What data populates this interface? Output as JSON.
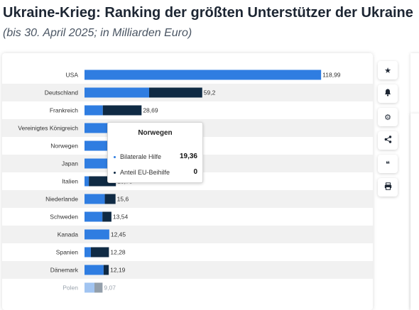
{
  "header": {
    "title": "Ukraine-Krieg: Ranking der größten Unterstützer der Ukraine",
    "subtitle": "(bis 30. April 2025; in Milliarden Euro)"
  },
  "colors": {
    "bilateral": "#2f7de1",
    "eu_share": "#0f2a44",
    "row_stripe": "#f1f1f1"
  },
  "chart_data": {
    "type": "bar",
    "orientation": "horizontal",
    "stacked": true,
    "categories": [
      "USA",
      "Deutschland",
      "Frankreich",
      "Vereinigtes Königreich",
      "Norwegen",
      "Japan",
      "Italien",
      "Niederlande",
      "Schweden",
      "Kanada",
      "Spanien",
      "Dänemark",
      "Polen"
    ],
    "series": [
      {
        "name": "Bilaterale Hilfe",
        "values": [
          118.99,
          32.5,
          9.2,
          21.8,
          19.36,
          18.4,
          2.2,
          10.2,
          9.0,
          12.45,
          3.2,
          9.6,
          5.0
        ]
      },
      {
        "name": "Anteil EU-Beihilfe",
        "values": [
          0,
          26.7,
          19.49,
          0,
          0,
          0,
          13.58,
          5.4,
          4.54,
          0,
          9.08,
          2.59,
          4.07
        ]
      }
    ],
    "totals": [
      "118,99",
      "59,2",
      "28,69",
      "",
      "",
      "",
      "15,78",
      "15,6",
      "13,54",
      "12,45",
      "12,28",
      "12,19",
      "9,07"
    ],
    "xlim": [
      0,
      120
    ],
    "legend": "none",
    "grid": false
  },
  "tooltip": {
    "title": "Norwegen",
    "rows": [
      {
        "label": "Bilaterale Hilfe",
        "value": "19,36"
      },
      {
        "label": "Anteil EU-Beihilfe",
        "value": "0"
      }
    ]
  },
  "toolbar": [
    {
      "icon": "star-icon",
      "glyph": "★"
    },
    {
      "icon": "bell-icon",
      "glyph": "🔔"
    },
    {
      "icon": "gear-icon",
      "glyph": "⚙"
    },
    {
      "icon": "share-icon",
      "glyph": "⋖"
    },
    {
      "icon": "quote-icon",
      "glyph": "❝"
    },
    {
      "icon": "print-icon",
      "glyph": "🖶"
    }
  ]
}
